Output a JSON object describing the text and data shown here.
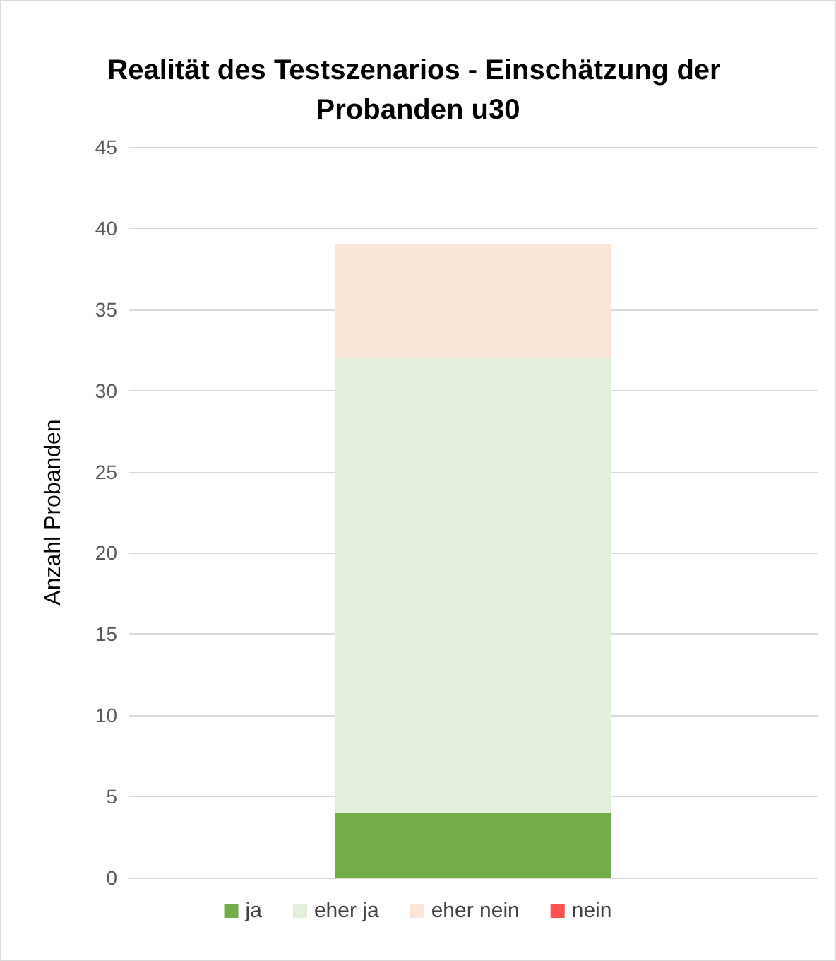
{
  "chart_data": {
    "type": "bar",
    "title": "Realität des Testszenarios - Einschätzung der Probanden u30",
    "ylabel": "Anzahl Probanden",
    "categories": [
      null
    ],
    "stacked": true,
    "series": [
      {
        "name": "ja",
        "color": "#70ad47",
        "values": [
          4
        ]
      },
      {
        "name": "eher ja",
        "color": "#e2efda",
        "values": [
          28
        ]
      },
      {
        "name": "eher nein",
        "color": "#fbe5d6",
        "values": [
          7
        ]
      },
      {
        "name": "nein",
        "color": "#ff5050",
        "values": [
          0
        ]
      }
    ],
    "ylim": [
      0,
      45
    ],
    "yticks": [
      0,
      5,
      10,
      15,
      20,
      25,
      30,
      35,
      40,
      45
    ],
    "grid": "y",
    "legend": "bottom",
    "tick_labels": "y"
  }
}
